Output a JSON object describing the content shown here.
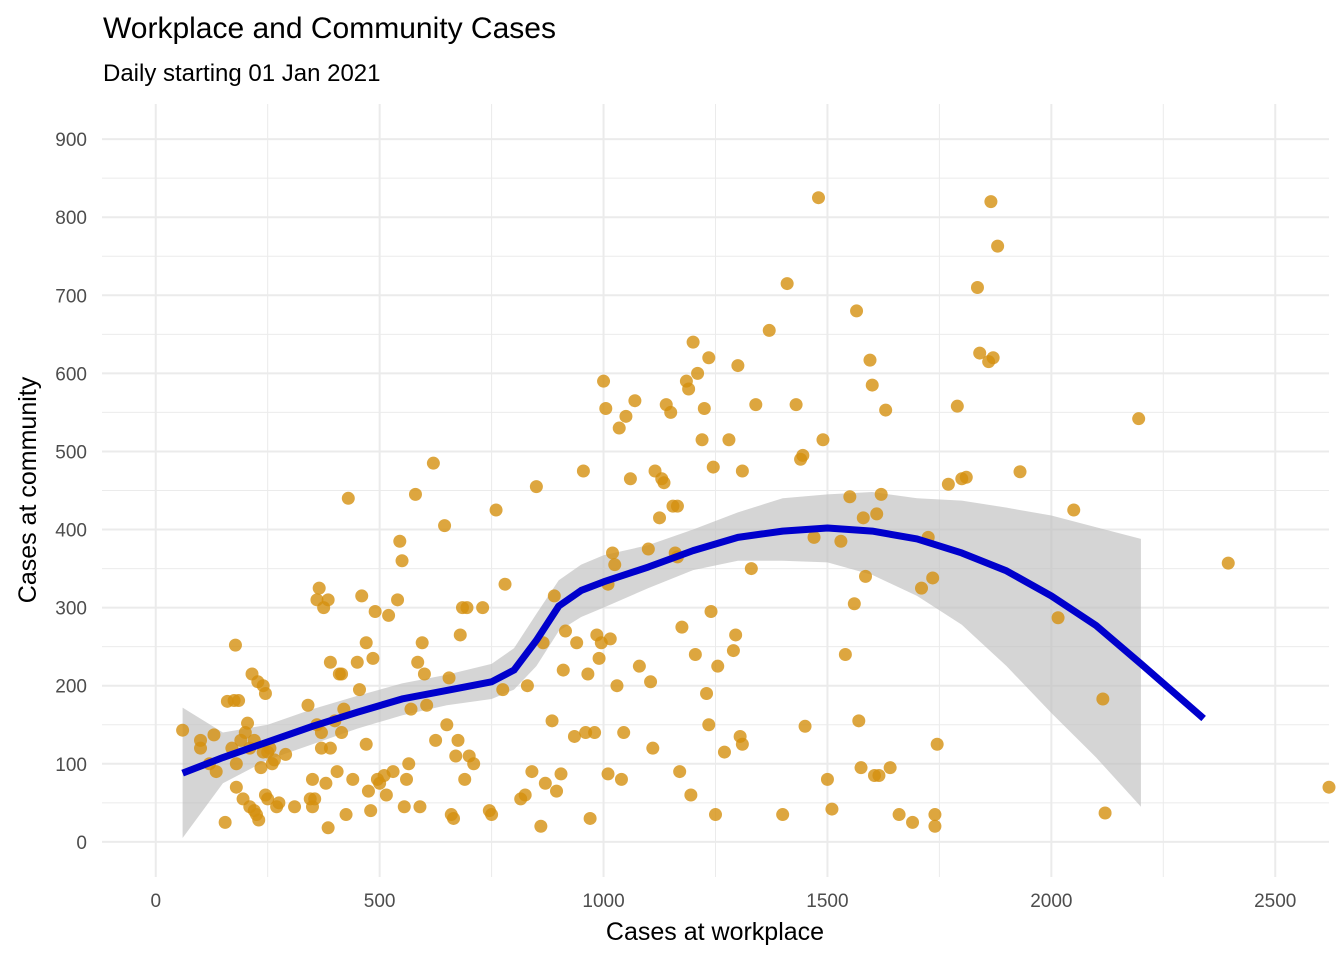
{
  "chart_data": {
    "type": "scatter",
    "title": "Workplace and Community Cases",
    "subtitle": "Daily starting 01 Jan 2021",
    "xlabel": "Cases at workplace",
    "ylabel": "Cases at community",
    "xlim": [
      -120,
      2620
    ],
    "ylim": [
      -45,
      945
    ],
    "x_ticks": [
      0,
      500,
      1000,
      1500,
      2000,
      2500
    ],
    "y_ticks": [
      0,
      100,
      200,
      300,
      400,
      500,
      600,
      700,
      800,
      900
    ],
    "x_tick_labels": [
      "0",
      "500",
      "1000",
      "1500",
      "2000",
      "2500"
    ],
    "y_tick_labels": [
      "0",
      "100",
      "200",
      "300",
      "400",
      "500",
      "600",
      "700",
      "800",
      "900"
    ],
    "grid": true,
    "legend": "none",
    "colors": {
      "points": "#D4900F",
      "smooth_line": "#0000CC",
      "band": "#BEBEBE",
      "grid": "#EBEBEB"
    },
    "points": [
      [
        60,
        143
      ],
      [
        100,
        130
      ],
      [
        100,
        120
      ],
      [
        120,
        100
      ],
      [
        130,
        137
      ],
      [
        135,
        90
      ],
      [
        155,
        25
      ],
      [
        160,
        180
      ],
      [
        170,
        120
      ],
      [
        175,
        181
      ],
      [
        178,
        252
      ],
      [
        180,
        70
      ],
      [
        180,
        100
      ],
      [
        185,
        181
      ],
      [
        190,
        130
      ],
      [
        195,
        55
      ],
      [
        200,
        140
      ],
      [
        205,
        152
      ],
      [
        210,
        120
      ],
      [
        210,
        45
      ],
      [
        215,
        215
      ],
      [
        220,
        130
      ],
      [
        220,
        40
      ],
      [
        225,
        35
      ],
      [
        228,
        205
      ],
      [
        230,
        28
      ],
      [
        235,
        95
      ],
      [
        240,
        200
      ],
      [
        240,
        115
      ],
      [
        245,
        190
      ],
      [
        245,
        60
      ],
      [
        250,
        115
      ],
      [
        250,
        55
      ],
      [
        255,
        120
      ],
      [
        260,
        100
      ],
      [
        265,
        105
      ],
      [
        270,
        45
      ],
      [
        275,
        50
      ],
      [
        290,
        112
      ],
      [
        310,
        45
      ],
      [
        340,
        175
      ],
      [
        345,
        55
      ],
      [
        350,
        80
      ],
      [
        350,
        45
      ],
      [
        355,
        55
      ],
      [
        360,
        150
      ],
      [
        360,
        310
      ],
      [
        365,
        325
      ],
      [
        370,
        140
      ],
      [
        370,
        120
      ],
      [
        375,
        300
      ],
      [
        380,
        75
      ],
      [
        385,
        18
      ],
      [
        385,
        310
      ],
      [
        390,
        230
      ],
      [
        390,
        120
      ],
      [
        400,
        155
      ],
      [
        405,
        90
      ],
      [
        410,
        215
      ],
      [
        415,
        215
      ],
      [
        415,
        140
      ],
      [
        420,
        170
      ],
      [
        425,
        35
      ],
      [
        430,
        440
      ],
      [
        440,
        80
      ],
      [
        450,
        230
      ],
      [
        455,
        195
      ],
      [
        460,
        315
      ],
      [
        470,
        255
      ],
      [
        470,
        125
      ],
      [
        475,
        65
      ],
      [
        480,
        40
      ],
      [
        485,
        235
      ],
      [
        490,
        295
      ],
      [
        495,
        80
      ],
      [
        500,
        75
      ],
      [
        510,
        85
      ],
      [
        515,
        60
      ],
      [
        520,
        290
      ],
      [
        530,
        90
      ],
      [
        540,
        310
      ],
      [
        545,
        385
      ],
      [
        550,
        360
      ],
      [
        555,
        45
      ],
      [
        560,
        80
      ],
      [
        565,
        100
      ],
      [
        570,
        170
      ],
      [
        580,
        445
      ],
      [
        585,
        230
      ],
      [
        590,
        45
      ],
      [
        595,
        255
      ],
      [
        600,
        215
      ],
      [
        605,
        175
      ],
      [
        620,
        485
      ],
      [
        625,
        130
      ],
      [
        645,
        405
      ],
      [
        650,
        150
      ],
      [
        655,
        210
      ],
      [
        660,
        35
      ],
      [
        665,
        30
      ],
      [
        670,
        110
      ],
      [
        675,
        130
      ],
      [
        680,
        265
      ],
      [
        685,
        300
      ],
      [
        690,
        80
      ],
      [
        695,
        300
      ],
      [
        700,
        110
      ],
      [
        710,
        100
      ],
      [
        730,
        300
      ],
      [
        745,
        40
      ],
      [
        750,
        35
      ],
      [
        760,
        425
      ],
      [
        775,
        195
      ],
      [
        780,
        330
      ],
      [
        815,
        55
      ],
      [
        825,
        60
      ],
      [
        830,
        200
      ],
      [
        840,
        90
      ],
      [
        850,
        455
      ],
      [
        860,
        20
      ],
      [
        865,
        255
      ],
      [
        870,
        75
      ],
      [
        885,
        155
      ],
      [
        890,
        315
      ],
      [
        895,
        65
      ],
      [
        905,
        87
      ],
      [
        910,
        220
      ],
      [
        915,
        270
      ],
      [
        935,
        135
      ],
      [
        940,
        255
      ],
      [
        955,
        475
      ],
      [
        960,
        140
      ],
      [
        965,
        215
      ],
      [
        970,
        30
      ],
      [
        980,
        140
      ],
      [
        985,
        265
      ],
      [
        990,
        235
      ],
      [
        995,
        255
      ],
      [
        1000,
        590
      ],
      [
        1005,
        555
      ],
      [
        1010,
        330
      ],
      [
        1010,
        87
      ],
      [
        1015,
        260
      ],
      [
        1020,
        370
      ],
      [
        1025,
        355
      ],
      [
        1030,
        200
      ],
      [
        1035,
        530
      ],
      [
        1040,
        80
      ],
      [
        1045,
        140
      ],
      [
        1050,
        545
      ],
      [
        1060,
        465
      ],
      [
        1070,
        565
      ],
      [
        1080,
        225
      ],
      [
        1100,
        375
      ],
      [
        1105,
        205
      ],
      [
        1110,
        120
      ],
      [
        1115,
        475
      ],
      [
        1125,
        415
      ],
      [
        1130,
        465
      ],
      [
        1135,
        460
      ],
      [
        1140,
        560
      ],
      [
        1150,
        550
      ],
      [
        1155,
        430
      ],
      [
        1160,
        370
      ],
      [
        1165,
        365
      ],
      [
        1165,
        430
      ],
      [
        1170,
        90
      ],
      [
        1175,
        275
      ],
      [
        1185,
        590
      ],
      [
        1190,
        580
      ],
      [
        1195,
        60
      ],
      [
        1200,
        640
      ],
      [
        1205,
        240
      ],
      [
        1210,
        600
      ],
      [
        1220,
        515
      ],
      [
        1225,
        555
      ],
      [
        1230,
        190
      ],
      [
        1235,
        620
      ],
      [
        1235,
        150
      ],
      [
        1240,
        295
      ],
      [
        1245,
        480
      ],
      [
        1250,
        35
      ],
      [
        1255,
        225
      ],
      [
        1270,
        115
      ],
      [
        1280,
        515
      ],
      [
        1290,
        245
      ],
      [
        1295,
        265
      ],
      [
        1300,
        610
      ],
      [
        1305,
        135
      ],
      [
        1310,
        125
      ],
      [
        1310,
        475
      ],
      [
        1330,
        350
      ],
      [
        1340,
        560
      ],
      [
        1370,
        655
      ],
      [
        1410,
        715
      ],
      [
        1400,
        35
      ],
      [
        1430,
        560
      ],
      [
        1440,
        490
      ],
      [
        1445,
        495
      ],
      [
        1450,
        148
      ],
      [
        1470,
        390
      ],
      [
        1480,
        825
      ],
      [
        1490,
        515
      ],
      [
        1500,
        80
      ],
      [
        1510,
        42
      ],
      [
        1530,
        385
      ],
      [
        1540,
        240
      ],
      [
        1550,
        442
      ],
      [
        1560,
        305
      ],
      [
        1565,
        680
      ],
      [
        1570,
        155
      ],
      [
        1575,
        95
      ],
      [
        1580,
        415
      ],
      [
        1585,
        340
      ],
      [
        1595,
        617
      ],
      [
        1600,
        585
      ],
      [
        1605,
        85
      ],
      [
        1610,
        420
      ],
      [
        1615,
        85
      ],
      [
        1620,
        445
      ],
      [
        1630,
        553
      ],
      [
        1640,
        95
      ],
      [
        1660,
        35
      ],
      [
        1690,
        25
      ],
      [
        1710,
        325
      ],
      [
        1725,
        390
      ],
      [
        1735,
        338
      ],
      [
        1740,
        35
      ],
      [
        1740,
        20
      ],
      [
        1745,
        125
      ],
      [
        1770,
        458
      ],
      [
        1790,
        558
      ],
      [
        1800,
        465
      ],
      [
        1810,
        467
      ],
      [
        1835,
        710
      ],
      [
        1840,
        626
      ],
      [
        1860,
        615
      ],
      [
        1865,
        820
      ],
      [
        1870,
        620
      ],
      [
        1880,
        763
      ],
      [
        1930,
        474
      ],
      [
        2015,
        287
      ],
      [
        2050,
        425
      ],
      [
        2115,
        183
      ],
      [
        2120,
        37
      ],
      [
        2195,
        542
      ],
      [
        2395,
        357
      ],
      [
        2620,
        70
      ]
    ],
    "smooth": {
      "method": "loess",
      "x": [
        60,
        150,
        250,
        350,
        450,
        550,
        650,
        750,
        800,
        850,
        900,
        950,
        1000,
        1100,
        1200,
        1300,
        1400,
        1500,
        1600,
        1700,
        1800,
        1900,
        2000,
        2100,
        2200,
        2340
      ],
      "y": [
        88,
        108,
        128,
        148,
        166,
        183,
        194,
        205,
        220,
        258,
        302,
        322,
        333,
        352,
        373,
        390,
        398,
        402,
        398,
        388,
        370,
        347,
        315,
        277,
        228,
        158
      ],
      "ymin": [
        5,
        75,
        105,
        125,
        145,
        162,
        175,
        183,
        195,
        225,
        270,
        288,
        300,
        325,
        348,
        360,
        360,
        358,
        342,
        315,
        278,
        225,
        165,
        108,
        45,
        null
      ],
      "ymax": [
        172,
        140,
        150,
        170,
        187,
        203,
        214,
        228,
        248,
        292,
        335,
        355,
        367,
        380,
        400,
        422,
        440,
        445,
        448,
        440,
        437,
        428,
        418,
        403,
        388,
        null
      ]
    }
  }
}
